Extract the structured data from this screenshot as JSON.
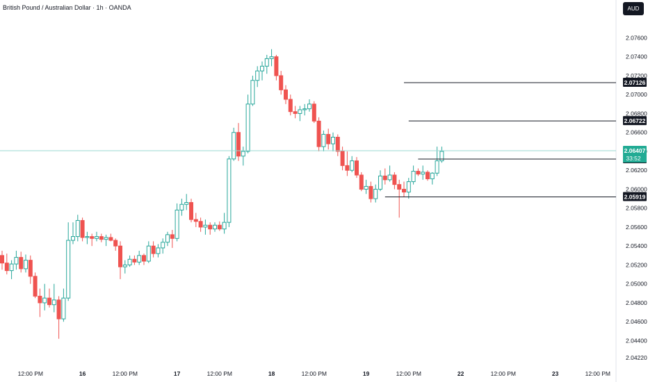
{
  "header": {
    "title": "British Pound / Australian Dollar · 1h · OANDA",
    "currency": "AUD"
  },
  "colors": {
    "up": "#26a69a",
    "down": "#ef5350",
    "current": "#22ab94",
    "level": "#131722"
  },
  "chart_data": {
    "type": "candlestick",
    "ylim": [
      2.0422,
      2.0775
    ],
    "y_ticks": [
      "2.07600",
      "2.07400",
      "2.07200",
      "2.07000",
      "2.06800",
      "2.06600",
      "2.06400",
      "2.06200",
      "2.06000",
      "2.05800",
      "2.05600",
      "2.05400",
      "2.05200",
      "2.05000",
      "2.04800",
      "2.04600",
      "2.04400",
      "2.04220"
    ],
    "x_ticks": [
      {
        "label": "12:00 PM",
        "bold": false,
        "index": 6
      },
      {
        "label": "16",
        "bold": true,
        "index": 17
      },
      {
        "label": "12:00 PM",
        "bold": false,
        "index": 26
      },
      {
        "label": "17",
        "bold": true,
        "index": 37
      },
      {
        "label": "12:00 PM",
        "bold": false,
        "index": 46
      },
      {
        "label": "18",
        "bold": true,
        "index": 57
      },
      {
        "label": "12:00 PM",
        "bold": false,
        "index": 66
      },
      {
        "label": "19",
        "bold": true,
        "index": 77
      },
      {
        "label": "12:00 PM",
        "bold": false,
        "index": 86
      },
      {
        "label": "22",
        "bold": true,
        "index": 97
      },
      {
        "label": "12:00 PM",
        "bold": false,
        "index": 106
      },
      {
        "label": "23",
        "bold": true,
        "index": 117
      },
      {
        "label": "12:00 PM",
        "bold": false,
        "index": 126
      }
    ],
    "candles": [
      [
        2.053,
        2.0535,
        2.0515,
        2.0522
      ],
      [
        2.0522,
        2.0532,
        2.051,
        2.0514
      ],
      [
        2.0514,
        2.0525,
        2.0505,
        2.0521
      ],
      [
        2.0521,
        2.0535,
        2.0515,
        2.0528
      ],
      [
        2.0528,
        2.0534,
        2.0512,
        2.0516
      ],
      [
        2.0516,
        2.0531,
        2.0512,
        2.0525
      ],
      [
        2.0525,
        2.053,
        2.05,
        2.0508
      ],
      [
        2.0508,
        2.0512,
        2.0485,
        2.0487
      ],
      [
        2.0487,
        2.0495,
        2.0465,
        2.048
      ],
      [
        2.048,
        2.05,
        2.0472,
        2.0485
      ],
      [
        2.0485,
        2.0495,
        2.0475,
        2.0478
      ],
      [
        2.0478,
        2.05,
        2.047,
        2.0483
      ],
      [
        2.0483,
        2.0487,
        2.0442,
        2.0463
      ],
      [
        2.0463,
        2.0495,
        2.046,
        2.0485
      ],
      [
        2.0485,
        2.0565,
        2.0482,
        2.0546
      ],
      [
        2.0546,
        2.0565,
        2.0542,
        2.055
      ],
      [
        2.055,
        2.0573,
        2.0545,
        2.0567
      ],
      [
        2.0567,
        2.057,
        2.0545,
        2.0549
      ],
      [
        2.0549,
        2.0555,
        2.0542,
        2.055
      ],
      [
        2.055,
        2.0553,
        2.054,
        2.0548
      ],
      [
        2.0548,
        2.0555,
        2.0545,
        2.055
      ],
      [
        2.055,
        2.0553,
        2.0544,
        2.0547
      ],
      [
        2.0547,
        2.0552,
        2.054,
        2.0549
      ],
      [
        2.0549,
        2.0553,
        2.0545,
        2.0546
      ],
      [
        2.0546,
        2.0548,
        2.0535,
        2.054
      ],
      [
        2.054,
        2.0545,
        2.0505,
        2.0518
      ],
      [
        2.0518,
        2.0525,
        2.0511,
        2.052
      ],
      [
        2.052,
        2.053,
        2.0518,
        2.0526
      ],
      [
        2.0526,
        2.053,
        2.052,
        2.0523
      ],
      [
        2.0523,
        2.0535,
        2.052,
        2.053
      ],
      [
        2.053,
        2.0532,
        2.052,
        2.0524
      ],
      [
        2.0524,
        2.0545,
        2.0522,
        2.054
      ],
      [
        2.054,
        2.0545,
        2.0528,
        2.0532
      ],
      [
        2.0532,
        2.0542,
        2.0528,
        2.0538
      ],
      [
        2.0538,
        2.0548,
        2.0532,
        2.0544
      ],
      [
        2.0544,
        2.0555,
        2.054,
        2.0552
      ],
      [
        2.0552,
        2.0557,
        2.0538,
        2.0548
      ],
      [
        2.0548,
        2.0585,
        2.0545,
        2.0578
      ],
      [
        2.0578,
        2.059,
        2.0572,
        2.0584
      ],
      [
        2.0584,
        2.0595,
        2.0578,
        2.0586
      ],
      [
        2.0586,
        2.059,
        2.0565,
        2.0568
      ],
      [
        2.0568,
        2.0575,
        2.056,
        2.0566
      ],
      [
        2.0566,
        2.057,
        2.0555,
        2.056
      ],
      [
        2.056,
        2.0568,
        2.0552,
        2.0562
      ],
      [
        2.0562,
        2.0565,
        2.0552,
        2.0558
      ],
      [
        2.0558,
        2.0565,
        2.0555,
        2.0562
      ],
      [
        2.0562,
        2.0566,
        2.0556,
        2.0558
      ],
      [
        2.0558,
        2.0575,
        2.0553,
        2.0565
      ],
      [
        2.0565,
        2.0635,
        2.056,
        2.0632
      ],
      [
        2.0632,
        2.0665,
        2.063,
        2.066
      ],
      [
        2.066,
        2.067,
        2.063,
        2.0635
      ],
      [
        2.0635,
        2.0645,
        2.0625,
        2.064
      ],
      [
        2.064,
        2.07,
        2.0638,
        2.069
      ],
      [
        2.069,
        2.072,
        2.0688,
        2.0715
      ],
      [
        2.0715,
        2.073,
        2.0708,
        2.0725
      ],
      [
        2.0725,
        2.0735,
        2.0715,
        2.073
      ],
      [
        2.073,
        2.0742,
        2.0722,
        2.0738
      ],
      [
        2.0738,
        2.0748,
        2.073,
        2.074
      ],
      [
        2.074,
        2.0742,
        2.0715,
        2.072
      ],
      [
        2.072,
        2.0725,
        2.07,
        2.0705
      ],
      [
        2.0705,
        2.071,
        2.069,
        2.0695
      ],
      [
        2.0695,
        2.07,
        2.0678,
        2.0682
      ],
      [
        2.0682,
        2.0688,
        2.0675,
        2.068
      ],
      [
        2.068,
        2.0688,
        2.0672,
        2.0684
      ],
      [
        2.0684,
        2.069,
        2.0678,
        2.0685
      ],
      [
        2.0685,
        2.0695,
        2.0682,
        2.069
      ],
      [
        2.069,
        2.0693,
        2.067,
        2.0672
      ],
      [
        2.0672,
        2.0676,
        2.064,
        2.0645
      ],
      [
        2.0645,
        2.0662,
        2.064,
        2.0658
      ],
      [
        2.0658,
        2.0664,
        2.0642,
        2.0648
      ],
      [
        2.0648,
        2.066,
        2.064,
        2.0655
      ],
      [
        2.0655,
        2.0658,
        2.0635,
        2.064
      ],
      [
        2.064,
        2.0645,
        2.062,
        2.0625
      ],
      [
        2.0625,
        2.064,
        2.0614,
        2.062
      ],
      [
        2.062,
        2.0635,
        2.0618,
        2.063
      ],
      [
        2.063,
        2.0634,
        2.0612,
        2.0615
      ],
      [
        2.0615,
        2.0618,
        2.0598,
        2.06
      ],
      [
        2.06,
        2.061,
        2.0595,
        2.0603
      ],
      [
        2.0603,
        2.0608,
        2.0586,
        2.059
      ],
      [
        2.059,
        2.0605,
        2.0586,
        2.06
      ],
      [
        2.06,
        2.062,
        2.0598,
        2.0614
      ],
      [
        2.0614,
        2.0622,
        2.0605,
        2.061
      ],
      [
        2.061,
        2.0625,
        2.0608,
        2.0615
      ],
      [
        2.0615,
        2.0618,
        2.06,
        2.0605
      ],
      [
        2.0605,
        2.061,
        2.057,
        2.06
      ],
      [
        2.06,
        2.0608,
        2.0592,
        2.0597
      ],
      [
        2.0597,
        2.0612,
        2.059,
        2.0608
      ],
      [
        2.0608,
        2.0625,
        2.0605,
        2.0619
      ],
      [
        2.0619,
        2.0622,
        2.0614,
        2.0616
      ],
      [
        2.0616,
        2.0625,
        2.061,
        2.0618
      ],
      [
        2.0618,
        2.062,
        2.0609,
        2.0611
      ],
      [
        2.0611,
        2.0618,
        2.0605,
        2.0617
      ],
      [
        2.0617,
        2.0645,
        2.0614,
        2.063
      ],
      [
        2.063,
        2.0645,
        2.0628,
        2.064
      ]
    ],
    "price_levels": [
      {
        "value": 2.07126,
        "label": "2.07126",
        "from_index": 85
      },
      {
        "value": 2.06722,
        "label": "2.06722",
        "from_index": 86
      },
      {
        "value": 2.06319,
        "label": "2.06319",
        "from_index": 88
      },
      {
        "value": 2.05919,
        "label": "2.05919",
        "from_index": 81
      }
    ],
    "current": {
      "value": 2.06407,
      "label": "2.06407",
      "countdown": "33:52"
    }
  }
}
